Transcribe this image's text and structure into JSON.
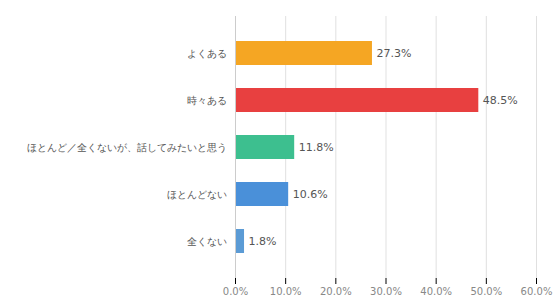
{
  "chart_data": {
    "type": "bar",
    "orientation": "horizontal",
    "categories": [
      "全くない",
      "ほとんどない",
      "ほとんど／全くないが、話してみたいと思う",
      "時々ある",
      "よくある"
    ],
    "values": [
      1.8,
      10.6,
      11.8,
      48.5,
      27.3
    ],
    "value_labels": [
      "1.8%",
      "10.6%",
      "11.8%",
      "48.5%",
      "27.3%"
    ],
    "colors": [
      "#5b9bd5",
      "#4a90d9",
      "#3dbf8f",
      "#e84040",
      "#f5a623"
    ],
    "xlim": [
      0,
      60
    ],
    "xticks": [
      {
        "value": 0,
        "label": "0.0%"
      },
      {
        "value": 10,
        "label": "10.0%"
      },
      {
        "value": 20,
        "label": "20.0%"
      },
      {
        "value": 30,
        "label": "30.0%"
      },
      {
        "value": 40,
        "label": "40.0%"
      },
      {
        "value": 50,
        "label": "50.0%"
      },
      {
        "value": 60,
        "label": "60.0%"
      }
    ],
    "grid": true,
    "data_labels": true
  }
}
